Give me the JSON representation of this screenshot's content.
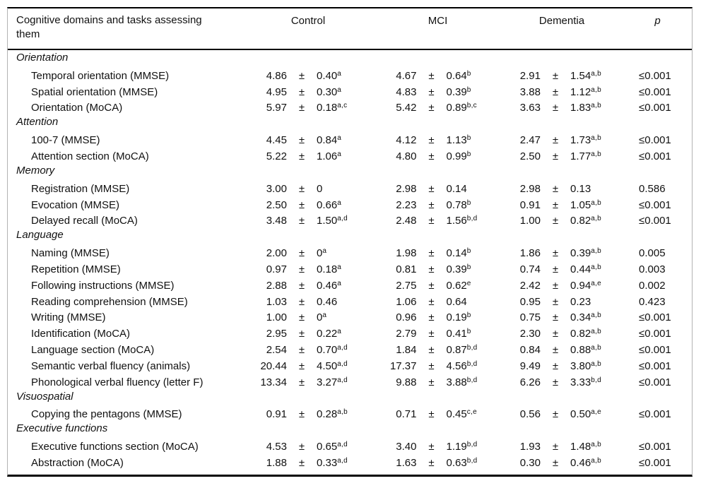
{
  "table": {
    "plus_minus": "±",
    "header": {
      "name_line1": "Cognitive domains and tasks assessing",
      "name_line2": "them",
      "control": "Control",
      "mci": "MCI",
      "dementia": "Dementia",
      "p": "p"
    },
    "sections": [
      {
        "label": "Orientation",
        "rows": [
          {
            "task": "Temporal orientation (MMSE)",
            "control": {
              "mean": "4.86",
              "sd": "0.40",
              "sup": "a"
            },
            "mci": {
              "mean": "4.67",
              "sd": "0.64",
              "sup": "b"
            },
            "dementia": {
              "mean": "2.91",
              "sd": "1.54",
              "sup": "a,b"
            },
            "p": "≤0.001"
          },
          {
            "task": "Spatial orientation (MMSE)",
            "control": {
              "mean": "4.95",
              "sd": "0.30",
              "sup": "a"
            },
            "mci": {
              "mean": "4.83",
              "sd": "0.39",
              "sup": "b"
            },
            "dementia": {
              "mean": "3.88",
              "sd": "1.12",
              "sup": "a,b"
            },
            "p": "≤0.001"
          },
          {
            "task": "Orientation (MoCA)",
            "control": {
              "mean": "5.97",
              "sd": "0.18",
              "sup": "a,c"
            },
            "mci": {
              "mean": "5.42",
              "sd": "0.89",
              "sup": "b,c"
            },
            "dementia": {
              "mean": "3.63",
              "sd": "1.83",
              "sup": "a,b"
            },
            "p": "≤0.001"
          }
        ]
      },
      {
        "label": "Attention",
        "rows": [
          {
            "task": "100-7 (MMSE)",
            "control": {
              "mean": "4.45",
              "sd": "0.84",
              "sup": "a"
            },
            "mci": {
              "mean": "4.12",
              "sd": "1.13",
              "sup": "b"
            },
            "dementia": {
              "mean": "2.47",
              "sd": "1.73",
              "sup": "a,b"
            },
            "p": "≤0.001"
          },
          {
            "task": "Attention section (MoCA)",
            "control": {
              "mean": "5.22",
              "sd": "1.06",
              "sup": "a"
            },
            "mci": {
              "mean": "4.80",
              "sd": "0.99",
              "sup": "b"
            },
            "dementia": {
              "mean": "2.50",
              "sd": "1.77",
              "sup": "a,b"
            },
            "p": "≤0.001"
          }
        ]
      },
      {
        "label": "Memory",
        "rows": [
          {
            "task": "Registration (MMSE)",
            "control": {
              "mean": "3.00",
              "sd": "0",
              "sup": ""
            },
            "mci": {
              "mean": "2.98",
              "sd": "0.14",
              "sup": ""
            },
            "dementia": {
              "mean": "2.98",
              "sd": "0.13",
              "sup": ""
            },
            "p": "0.586"
          },
          {
            "task": "Evocation (MMSE)",
            "control": {
              "mean": "2.50",
              "sd": "0.66",
              "sup": "a"
            },
            "mci": {
              "mean": "2.23",
              "sd": "0.78",
              "sup": "b"
            },
            "dementia": {
              "mean": "0.91",
              "sd": "1.05",
              "sup": "a,b"
            },
            "p": "≤0.001"
          },
          {
            "task": "Delayed recall (MoCA)",
            "control": {
              "mean": "3.48",
              "sd": "1.50",
              "sup": "a,d"
            },
            "mci": {
              "mean": "2.48",
              "sd": "1.56",
              "sup": "b,d"
            },
            "dementia": {
              "mean": "1.00",
              "sd": "0.82",
              "sup": "a,b"
            },
            "p": "≤0.001"
          }
        ]
      },
      {
        "label": "Language",
        "rows": [
          {
            "task": "Naming (MMSE)",
            "control": {
              "mean": "2.00",
              "sd": "0",
              "sup": "a"
            },
            "mci": {
              "mean": "1.98",
              "sd": "0.14",
              "sup": "b"
            },
            "dementia": {
              "mean": "1.86",
              "sd": "0.39",
              "sup": "a,b"
            },
            "p": "0.005"
          },
          {
            "task": "Repetition (MMSE)",
            "control": {
              "mean": "0.97",
              "sd": "0.18",
              "sup": "a"
            },
            "mci": {
              "mean": "0.81",
              "sd": "0.39",
              "sup": "b"
            },
            "dementia": {
              "mean": "0.74",
              "sd": "0.44",
              "sup": "a,b"
            },
            "p": "0.003"
          },
          {
            "task": "Following instructions (MMSE)",
            "control": {
              "mean": "2.88",
              "sd": "0.46",
              "sup": "a"
            },
            "mci": {
              "mean": "2.75",
              "sd": "0.62",
              "sup": "e"
            },
            "dementia": {
              "mean": "2.42",
              "sd": "0.94",
              "sup": "a,e"
            },
            "p": "0.002"
          },
          {
            "task": "Reading comprehension (MMSE)",
            "control": {
              "mean": "1.03",
              "sd": "0.46",
              "sup": ""
            },
            "mci": {
              "mean": "1.06",
              "sd": "0.64",
              "sup": ""
            },
            "dementia": {
              "mean": "0.95",
              "sd": "0.23",
              "sup": ""
            },
            "p": "0.423"
          },
          {
            "task": "Writing (MMSE)",
            "control": {
              "mean": "1.00",
              "sd": "0",
              "sup": "a"
            },
            "mci": {
              "mean": "0.96",
              "sd": "0.19",
              "sup": "b"
            },
            "dementia": {
              "mean": "0.75",
              "sd": "0.34",
              "sup": "a,b"
            },
            "p": "≤0.001"
          },
          {
            "task": "Identification (MoCA)",
            "control": {
              "mean": "2.95",
              "sd": "0.22",
              "sup": "a"
            },
            "mci": {
              "mean": "2.79",
              "sd": "0.41",
              "sup": "b"
            },
            "dementia": {
              "mean": "2.30",
              "sd": "0.82",
              "sup": "a,b"
            },
            "p": "≤0.001"
          },
          {
            "task": "Language section (MoCA)",
            "control": {
              "mean": "2.54",
              "sd": "0.70",
              "sup": "a,d"
            },
            "mci": {
              "mean": "1.84",
              "sd": "0.87",
              "sup": "b,d"
            },
            "dementia": {
              "mean": "0.84",
              "sd": "0.88",
              "sup": "a,b"
            },
            "p": "≤0.001"
          },
          {
            "task": "Semantic verbal fluency (animals)",
            "control": {
              "mean": "20.44",
              "sd": "4.50",
              "sup": "a,d"
            },
            "mci": {
              "mean": "17.37",
              "sd": "4.56",
              "sup": "b,d"
            },
            "dementia": {
              "mean": "9.49",
              "sd": "3.80",
              "sup": "a,b"
            },
            "p": "≤0.001"
          },
          {
            "task": "Phonological verbal fluency (letter F)",
            "control": {
              "mean": "13.34",
              "sd": "3.27",
              "sup": "a,d"
            },
            "mci": {
              "mean": "9.88",
              "sd": "3.88",
              "sup": "b,d"
            },
            "dementia": {
              "mean": "6.26",
              "sd": "3.33",
              "sup": "b,d"
            },
            "p": "≤0.001"
          }
        ]
      },
      {
        "label": "Visuospatial",
        "rows": [
          {
            "task": "Copying the pentagons (MMSE)",
            "control": {
              "mean": "0.91",
              "sd": "0.28",
              "sup": "a,b"
            },
            "mci": {
              "mean": "0.71",
              "sd": "0.45",
              "sup": "c,e"
            },
            "dementia": {
              "mean": "0.56",
              "sd": "0.50",
              "sup": "a,e"
            },
            "p": "≤0.001"
          }
        ]
      },
      {
        "label": "Executive functions",
        "rows": [
          {
            "task": "Executive functions section (MoCA)",
            "control": {
              "mean": "4.53",
              "sd": "0.65",
              "sup": "a,d"
            },
            "mci": {
              "mean": "3.40",
              "sd": "1.19",
              "sup": "b,d"
            },
            "dementia": {
              "mean": "1.93",
              "sd": "1.48",
              "sup": "a,b"
            },
            "p": "≤0.001"
          },
          {
            "task": "Abstraction (MoCA)",
            "control": {
              "mean": "1.88",
              "sd": "0.33",
              "sup": "a,d"
            },
            "mci": {
              "mean": "1.63",
              "sd": "0.63",
              "sup": "b,d"
            },
            "dementia": {
              "mean": "0.30",
              "sd": "0.46",
              "sup": "a,b"
            },
            "p": "≤0.001"
          }
        ]
      }
    ]
  }
}
